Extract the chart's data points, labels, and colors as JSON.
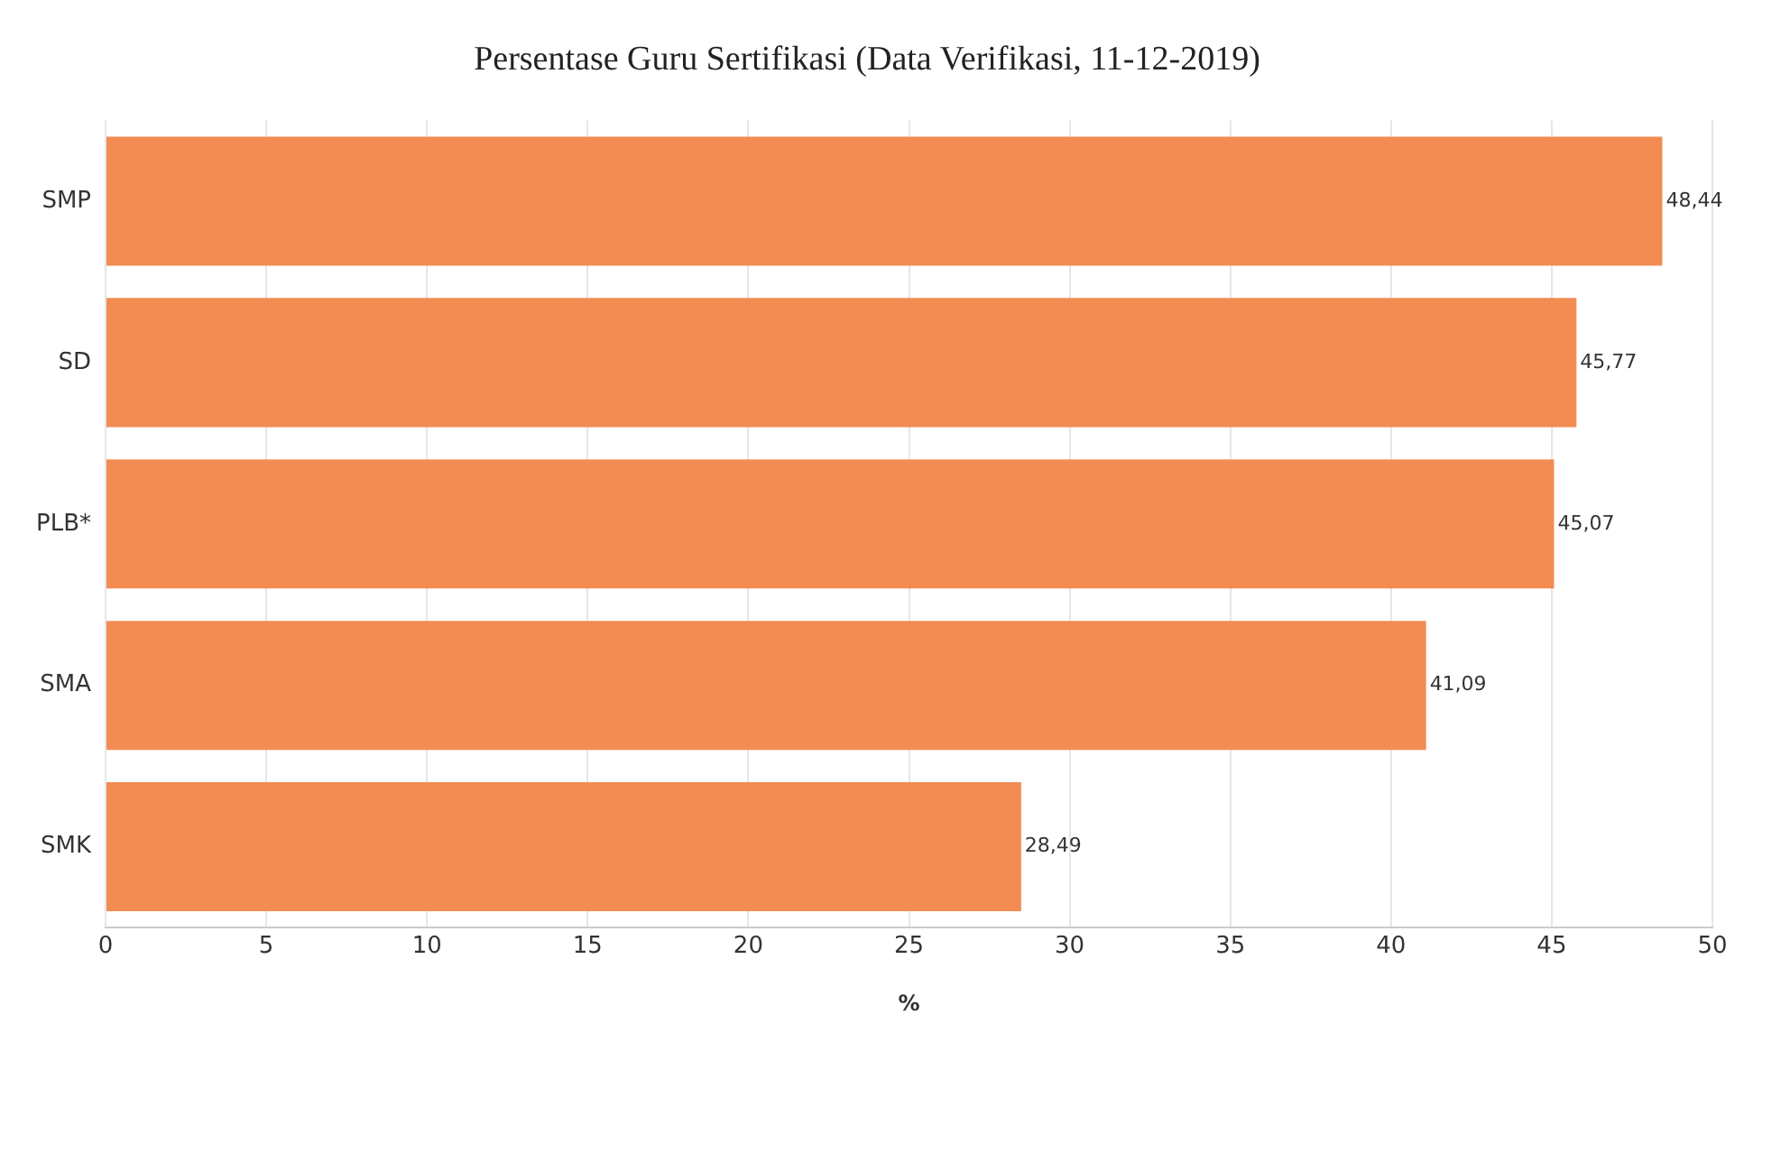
{
  "chart_data": {
    "type": "bar",
    "orientation": "horizontal",
    "title": "Persentase Guru Sertifikasi (Data Verifikasi, 11-12-2019)",
    "xlabel": "%",
    "categories": [
      "SMP",
      "SD",
      "PLB*",
      "SMA",
      "SMK"
    ],
    "values": [
      48.44,
      45.77,
      45.07,
      41.09,
      28.49
    ],
    "value_labels": [
      "48,44",
      "45,77",
      "45,07",
      "41,09",
      "28,49"
    ],
    "color": "#f28c52",
    "xlim": [
      0,
      50
    ],
    "xticks": [
      0,
      5,
      10,
      15,
      20,
      25,
      30,
      35,
      40,
      45,
      50
    ],
    "grid": "x"
  }
}
